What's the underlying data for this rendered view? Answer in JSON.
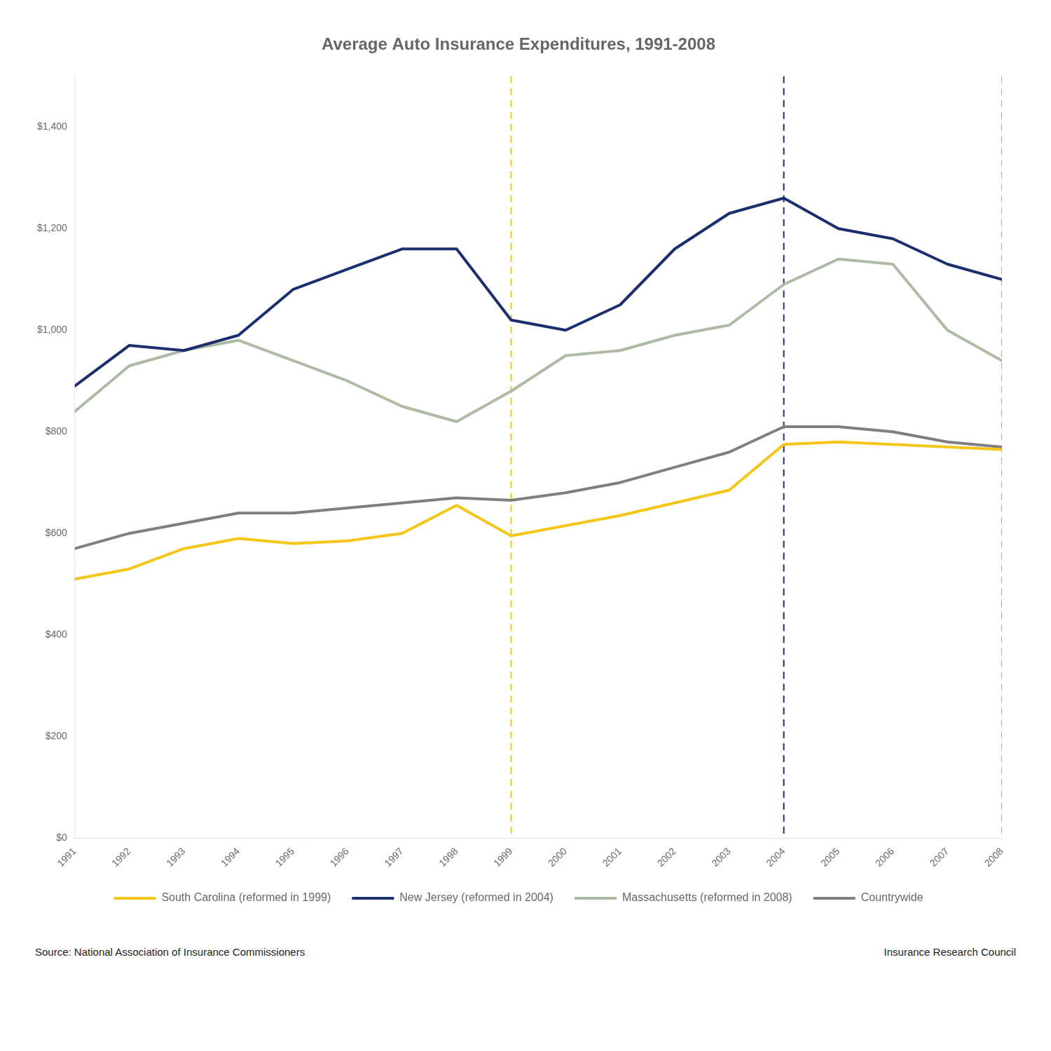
{
  "chart_data": {
    "type": "line",
    "title": "Average Auto Insurance Expenditures, 1991-2008",
    "x": [
      1991,
      1992,
      1993,
      1994,
      1995,
      1996,
      1997,
      1998,
      1999,
      2000,
      2001,
      2002,
      2003,
      2004,
      2005,
      2006,
      2007,
      2008
    ],
    "series": [
      {
        "name": "South Carolina (reformed in 1999)",
        "color": "#F5C518",
        "values": [
          510,
          530,
          570,
          590,
          580,
          585,
          600,
          655,
          595,
          615,
          635,
          660,
          685,
          775,
          780,
          775,
          770,
          765
        ]
      },
      {
        "name": "New Jersey (reformed in 2004)",
        "color": "#1B2F6E",
        "values": [
          890,
          970,
          960,
          990,
          1080,
          1120,
          1160,
          1160,
          1020,
          1000,
          1050,
          1160,
          1230,
          1260,
          1200,
          1180,
          1130,
          1100
        ]
      },
      {
        "name": "Massachusetts (reformed in 2008)",
        "color": "#ADBBA4",
        "values": [
          840,
          930,
          960,
          980,
          940,
          900,
          850,
          820,
          880,
          950,
          960,
          990,
          1010,
          1090,
          1140,
          1130,
          1000,
          940
        ]
      },
      {
        "name": "Countrywide",
        "color": "#7F7F7F",
        "values": [
          570,
          600,
          620,
          640,
          640,
          650,
          660,
          670,
          665,
          680,
          700,
          730,
          760,
          810,
          810,
          800,
          780,
          770
        ]
      }
    ],
    "xlim": [
      1991,
      2008
    ],
    "xticks": [
      1991,
      1992,
      1993,
      1994,
      1995,
      1996,
      1997,
      1998,
      1999,
      2000,
      2001,
      2002,
      2003,
      2004,
      2005,
      2006,
      2007,
      2008
    ],
    "ylim": [
      0,
      1500
    ],
    "yticks": [
      {
        "value": 0,
        "label": "$0"
      },
      {
        "value": 200,
        "label": "$200"
      },
      {
        "value": 400,
        "label": "$400"
      },
      {
        "value": 600,
        "label": "$600"
      },
      {
        "value": 800,
        "label": "$800"
      },
      {
        "value": 1000,
        "label": "$1,000"
      },
      {
        "value": 1200,
        "label": "$1,200"
      },
      {
        "value": 1400,
        "label": "$1,400"
      }
    ],
    "grid": false,
    "legend": "bottom",
    "annotations": [
      {
        "x": 1999,
        "color": "#F5C518",
        "line_style": "dashed"
      },
      {
        "x": 2004,
        "color": "#1B2F6E",
        "line_style": "dashed"
      },
      {
        "x": 2008,
        "color": "#AAAAAA",
        "line_style": "dashed"
      },
      {
        "text": "Source: National Association of Insurance Commissioners"
      },
      {
        "text": "Insurance Research Council"
      }
    ]
  }
}
